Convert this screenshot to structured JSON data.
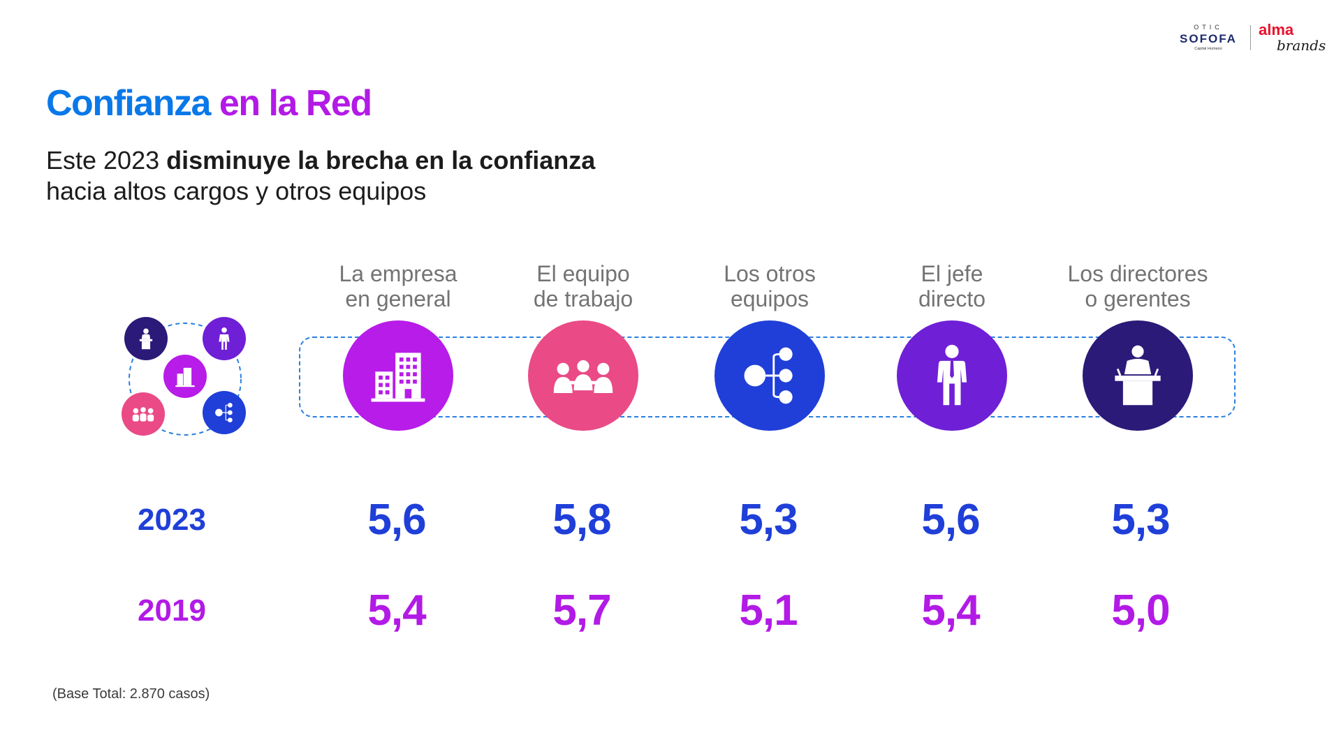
{
  "title": {
    "part1": "Confianza",
    "part2": "en la Red"
  },
  "subtitle": {
    "pre": "Este 2023 ",
    "bold": "disminuye la brecha en la confianza",
    "line2": "hacia altos cargos y otros equipos"
  },
  "columns": [
    {
      "line1": "La empresa",
      "line2": "en general",
      "icon": "building-icon",
      "color": "#b71ce8",
      "v2023": "5,6",
      "v2019": "5,4"
    },
    {
      "line1": "El equipo",
      "line2": "de trabajo",
      "icon": "team-icon",
      "color": "#ea4a86",
      "v2023": "5,8",
      "v2019": "5,7"
    },
    {
      "line1": "Los otros",
      "line2": "equipos",
      "icon": "network-icon",
      "color": "#1f3fd8",
      "v2023": "5,3",
      "v2019": "5,1"
    },
    {
      "line1": "El jefe",
      "line2": "directo",
      "icon": "person-tie-icon",
      "color": "#6f1fd6",
      "v2023": "5,6",
      "v2019": "5,4"
    },
    {
      "line1": "Los directores",
      "line2": "o gerentes",
      "icon": "podium-speaker-icon",
      "color": "#2b1a78",
      "v2023": "5,3",
      "v2019": "5,0"
    }
  ],
  "rows": {
    "y2023": "2023",
    "y2019": "2019"
  },
  "footnote": "(Base Total: 2.870 casos)",
  "logos": {
    "sofofa_top": "OTIC",
    "sofofa_main": "SOFOFA",
    "sofofa_sub": "Capital Humano",
    "alma_top": "alma",
    "alma_bottom": "brands"
  },
  "colors": {
    "blue_title": "#0a78e8",
    "purple": "#b21ae6",
    "value_blue": "#1f3fd8",
    "dash": "#2a7fe0",
    "logo_red": "#e8102a"
  }
}
